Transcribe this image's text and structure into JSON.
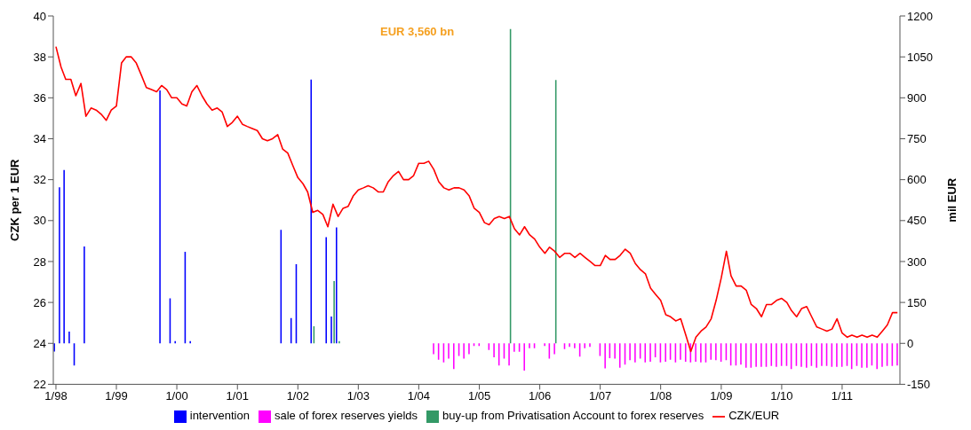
{
  "chart_data": {
    "type": "bar",
    "ylabel": "CZK per 1 EUR",
    "y2label": "mil EUR",
    "legend": "bottom",
    "annotations": [
      "EUR 3,560 bn"
    ],
    "x": [
      "1998-01",
      "1998-02",
      "1998-03",
      "1998-04",
      "1998-05",
      "1998-06",
      "1998-07",
      "1998-08",
      "1998-09",
      "1998-10",
      "1998-11",
      "1998-12",
      "1999-01",
      "1999-02",
      "1999-03",
      "1999-04",
      "1999-05",
      "1999-06",
      "1999-07",
      "1999-08",
      "1999-09",
      "1999-10",
      "1999-11",
      "1999-12",
      "2000-01",
      "2000-02",
      "2000-03",
      "2000-04",
      "2000-05",
      "2000-06",
      "2000-07",
      "2000-08",
      "2000-09",
      "2000-10",
      "2000-11",
      "2000-12",
      "2001-01",
      "2001-02",
      "2001-03",
      "2001-04",
      "2001-05",
      "2001-06",
      "2001-07",
      "2001-08",
      "2001-09",
      "2001-10",
      "2001-11",
      "2001-12",
      "2002-01",
      "2002-02",
      "2002-03",
      "2002-04",
      "2002-05",
      "2002-06",
      "2002-07",
      "2002-08",
      "2002-09",
      "2002-10",
      "2002-11",
      "2002-12",
      "2003-01",
      "2003-02",
      "2003-03",
      "2003-04",
      "2003-05",
      "2003-06",
      "2003-07",
      "2003-08",
      "2003-09",
      "2003-10",
      "2003-11",
      "2003-12",
      "2004-01",
      "2004-02",
      "2004-03",
      "2004-04",
      "2004-05",
      "2004-06",
      "2004-07",
      "2004-08",
      "2004-09",
      "2004-10",
      "2004-11",
      "2004-12",
      "2005-01",
      "2005-02",
      "2005-03",
      "2005-04",
      "2005-05",
      "2005-06",
      "2005-07",
      "2005-08",
      "2005-09",
      "2005-10",
      "2005-11",
      "2005-12",
      "2006-01",
      "2006-02",
      "2006-03",
      "2006-04",
      "2006-05",
      "2006-06",
      "2006-07",
      "2006-08",
      "2006-09",
      "2006-10",
      "2006-11",
      "2006-12",
      "2007-01",
      "2007-02",
      "2007-03",
      "2007-04",
      "2007-05",
      "2007-06",
      "2007-07",
      "2007-08",
      "2007-09",
      "2007-10",
      "2007-11",
      "2007-12",
      "2008-01",
      "2008-02",
      "2008-03",
      "2008-04",
      "2008-05",
      "2008-06",
      "2008-07",
      "2008-08",
      "2008-09",
      "2008-10",
      "2008-11",
      "2008-12",
      "2009-01",
      "2009-02",
      "2009-03",
      "2009-04",
      "2009-05",
      "2009-06",
      "2009-07",
      "2009-08",
      "2009-09",
      "2009-10",
      "2009-11",
      "2009-12",
      "2010-01",
      "2010-02",
      "2010-03",
      "2010-04",
      "2010-05",
      "2010-06",
      "2010-07",
      "2010-08",
      "2010-09",
      "2010-10",
      "2010-11",
      "2010-12",
      "2011-01",
      "2011-02",
      "2011-03",
      "2011-04",
      "2011-05",
      "2011-06",
      "2011-07",
      "2011-08",
      "2011-09",
      "2011-10",
      "2011-11",
      "2011-12"
    ],
    "xlim": [
      "1997-12-16",
      "2011-12-16"
    ],
    "xticks": [
      {
        "value": "1998-01",
        "label": "1/98"
      },
      {
        "value": "1999-01",
        "label": "1/99"
      },
      {
        "value": "2000-01",
        "label": "1/00"
      },
      {
        "value": "2001-01",
        "label": "1/01"
      },
      {
        "value": "2002-01",
        "label": "1/02"
      },
      {
        "value": "2003-01",
        "label": "1/03"
      },
      {
        "value": "2004-01",
        "label": "1/04"
      },
      {
        "value": "2005-01",
        "label": "1/05"
      },
      {
        "value": "2006-01",
        "label": "1/06"
      },
      {
        "value": "2007-01",
        "label": "1/07"
      },
      {
        "value": "2008-01",
        "label": "1/08"
      },
      {
        "value": "2009-01",
        "label": "1/09"
      },
      {
        "value": "2010-01",
        "label": "1/10"
      },
      {
        "value": "2011-01",
        "label": "1/11"
      }
    ],
    "ylim": [
      22,
      40
    ],
    "yticks": [
      22,
      24,
      26,
      28,
      30,
      32,
      34,
      36,
      38,
      40
    ],
    "y2lim": [
      -150,
      1200
    ],
    "y2ticks": [
      -150,
      0,
      150,
      300,
      450,
      600,
      750,
      900,
      1050,
      1200
    ],
    "series": [
      {
        "name": "intervention",
        "axis": "y2",
        "color": "#0000ff",
        "x": [
          "1998-01",
          "1998-02",
          "1998-03",
          "1998-04",
          "1998-05",
          "1998-07",
          "1999-10",
          "1999-12",
          "2000-01",
          "2000-03",
          "2000-04",
          "2001-10",
          "2001-12",
          "2002-01",
          "2002-04",
          "2002-07",
          "2002-08",
          "2002-09"
        ],
        "values": [
          -30,
          572,
          635,
          43,
          -81,
          355,
          927,
          165,
          8,
          336,
          8,
          416,
          93,
          290,
          967,
          389,
          98,
          425
        ]
      },
      {
        "name": "sale of forex reserves yields",
        "axis": "y2",
        "color": "#ff00ff",
        "x": [
          "2004-04",
          "2004-05",
          "2004-06",
          "2004-07",
          "2004-08",
          "2004-09",
          "2004-10",
          "2004-11",
          "2004-12",
          "2005-01",
          "2005-03",
          "2005-04",
          "2005-05",
          "2005-06",
          "2005-07",
          "2005-08",
          "2005-09",
          "2005-10",
          "2005-11",
          "2005-12",
          "2006-02",
          "2006-03",
          "2006-04",
          "2006-06",
          "2006-07",
          "2006-08",
          "2006-09",
          "2006-10",
          "2006-11",
          "2007-01",
          "2007-02",
          "2007-03",
          "2007-04",
          "2007-05",
          "2007-06",
          "2007-07",
          "2007-08",
          "2007-09",
          "2007-10",
          "2007-11",
          "2007-12",
          "2008-01",
          "2008-02",
          "2008-03",
          "2008-04",
          "2008-05",
          "2008-06",
          "2008-07",
          "2008-08",
          "2008-09",
          "2008-10",
          "2008-11",
          "2008-12",
          "2009-01",
          "2009-02",
          "2009-03",
          "2009-04",
          "2009-05",
          "2009-06",
          "2009-07",
          "2009-08",
          "2009-09",
          "2009-10",
          "2009-11",
          "2009-12",
          "2010-01",
          "2010-02",
          "2010-03",
          "2010-04",
          "2010-05",
          "2010-06",
          "2010-07",
          "2010-08",
          "2010-09",
          "2010-10",
          "2010-11",
          "2010-12",
          "2011-01",
          "2011-02",
          "2011-03",
          "2011-04",
          "2011-05",
          "2011-06",
          "2011-07",
          "2011-08",
          "2011-09",
          "2011-10",
          "2011-11",
          "2011-12"
        ],
        "values": [
          -40,
          -60,
          -70,
          -56,
          -94,
          -46,
          -56,
          -40,
          -10,
          -10,
          -24,
          -51,
          -81,
          -56,
          -81,
          -31,
          -31,
          -100,
          -18,
          -18,
          -10,
          -56,
          -40,
          -21,
          -13,
          -18,
          -49,
          -18,
          -13,
          -46,
          -92,
          -54,
          -56,
          -89,
          -78,
          -62,
          -70,
          -56,
          -70,
          -67,
          -51,
          -70,
          -67,
          -60,
          -70,
          -60,
          -67,
          -70,
          -67,
          -70,
          -70,
          -60,
          -62,
          -67,
          -62,
          -81,
          -81,
          -78,
          -89,
          -89,
          -86,
          -86,
          -86,
          -83,
          -86,
          -83,
          -83,
          -94,
          -83,
          -86,
          -89,
          -83,
          -89,
          -83,
          -83,
          -86,
          -86,
          -86,
          -83,
          -94,
          -83,
          -89,
          -89,
          -81,
          -94,
          -86,
          -83,
          -83,
          -81
        ]
      },
      {
        "name": "buy-up from Privatisation Account to forex reserves",
        "axis": "y2",
        "color": "#339966",
        "x": [
          "2002-04",
          "2002-07",
          "2002-08",
          "2002-09",
          "2005-07",
          "2006-04"
        ],
        "values": [
          63,
          null,
          228,
          8,
          1152,
          965
        ]
      },
      {
        "name": "CZK/EUR",
        "type": "line",
        "color": "#ff0000",
        "values": [
          38.5,
          37.5,
          36.9,
          36.9,
          36.1,
          36.7,
          35.1,
          35.5,
          35.4,
          35.2,
          34.9,
          35.4,
          35.6,
          37.7,
          38.0,
          38.0,
          37.7,
          37.1,
          36.5,
          36.4,
          36.3,
          36.6,
          36.4,
          36.0,
          36.0,
          35.7,
          35.6,
          36.3,
          36.6,
          36.1,
          35.7,
          35.4,
          35.5,
          35.3,
          34.6,
          34.8,
          35.1,
          34.7,
          34.6,
          34.5,
          34.4,
          34.0,
          33.9,
          34.0,
          34.2,
          33.5,
          33.3,
          32.7,
          32.1,
          31.8,
          31.4,
          30.4,
          30.5,
          30.3,
          29.7,
          30.8,
          30.2,
          30.6,
          30.7,
          31.2,
          31.5,
          31.6,
          31.7,
          31.6,
          31.4,
          31.4,
          31.9,
          32.2,
          32.4,
          32.0,
          32.0,
          32.2,
          32.8,
          32.8,
          32.9,
          32.5,
          31.9,
          31.6,
          31.5,
          31.6,
          31.6,
          31.5,
          31.2,
          30.6,
          30.4,
          29.9,
          29.8,
          30.1,
          30.2,
          30.1,
          30.2,
          29.6,
          29.3,
          29.7,
          29.3,
          29.1,
          28.7,
          28.4,
          28.7,
          28.5,
          28.2,
          28.4,
          28.4,
          28.2,
          28.4,
          28.2,
          28.0,
          27.8,
          27.8,
          28.3,
          28.1,
          28.1,
          28.3,
          28.6,
          28.4,
          27.9,
          27.6,
          27.4,
          26.7,
          26.4,
          26.1,
          25.4,
          25.3,
          25.1,
          25.2,
          24.4,
          23.6,
          24.3,
          24.6,
          24.8,
          25.2,
          26.1,
          27.2,
          28.5,
          27.3,
          26.8,
          26.8,
          26.6,
          25.9,
          25.7,
          25.3,
          25.9,
          25.9,
          26.1,
          26.2,
          26.0,
          25.6,
          25.3,
          25.7,
          25.8,
          25.3,
          24.8,
          24.7,
          24.6,
          24.7,
          25.2,
          24.5,
          24.3,
          24.4,
          24.3,
          24.4,
          24.3,
          24.4,
          24.3,
          24.6,
          24.9,
          25.5,
          25.5
        ]
      }
    ]
  }
}
